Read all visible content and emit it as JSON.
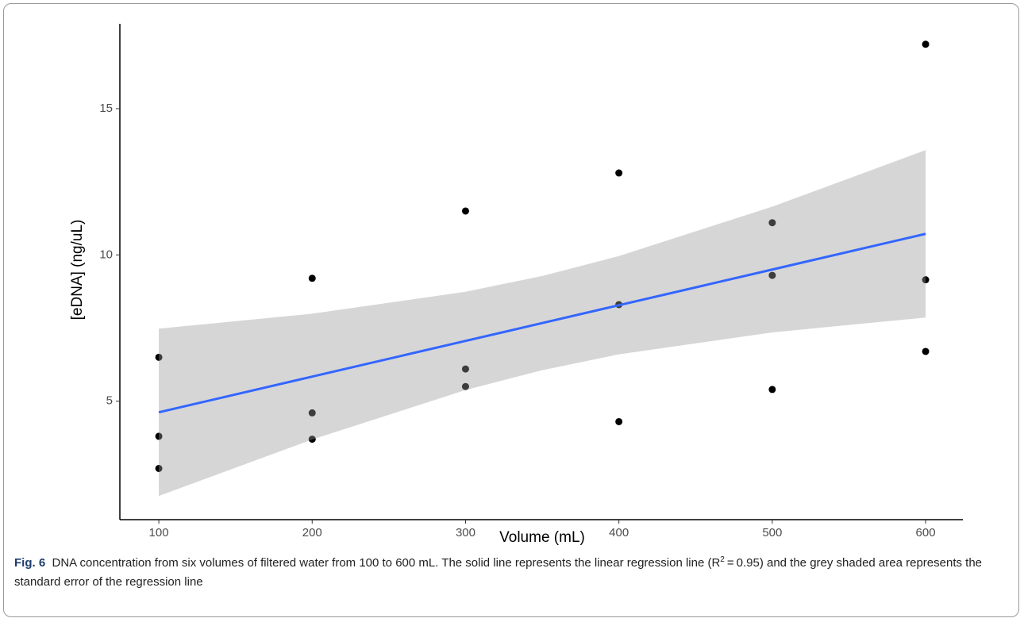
{
  "chart_data": {
    "type": "scatter",
    "x_label": "Volume (mL)",
    "y_label": "[eDNA] (ng/uL)",
    "x": [
      100,
      100,
      100,
      200,
      200,
      200,
      300,
      300,
      300,
      400,
      400,
      400,
      500,
      500,
      500,
      600,
      600,
      600
    ],
    "values": [
      6.5,
      3.8,
      2.7,
      9.2,
      4.6,
      3.7,
      11.5,
      6.1,
      5.5,
      12.8,
      8.3,
      4.3,
      11.1,
      9.3,
      5.4,
      17.2,
      9.15,
      6.7
    ],
    "color": "#000000",
    "fit": {
      "x": [
        100,
        200,
        300,
        350,
        400,
        500,
        600
      ],
      "values": [
        4.62,
        5.84,
        7.06,
        7.67,
        8.28,
        9.5,
        10.72
      ],
      "color": "#3366ff"
    },
    "band": {
      "x": [
        100,
        200,
        300,
        350,
        400,
        500,
        600
      ],
      "lower": [
        1.76,
        3.69,
        5.38,
        6.06,
        6.6,
        7.35,
        7.86
      ],
      "upper": [
        7.48,
        7.99,
        8.74,
        9.28,
        9.96,
        11.65,
        13.58
      ],
      "color": "#999999"
    },
    "xlim": [
      74.6,
      624.3
    ],
    "ylim": [
      0.95,
      17.9
    ],
    "xticks": [
      100,
      200,
      300,
      400,
      500,
      600
    ],
    "yticks": [
      5,
      10,
      15
    ],
    "grid": false
  },
  "caption": {
    "label": "Fig. 6",
    "text_before": "DNA concentration from six volumes of filtered water from 100 to 600 mL. The solid line represents the linear regression line (R",
    "superscript": "2",
    "text_after": " = 0.95) and the grey shaded area represents the standard error of the regression line"
  }
}
